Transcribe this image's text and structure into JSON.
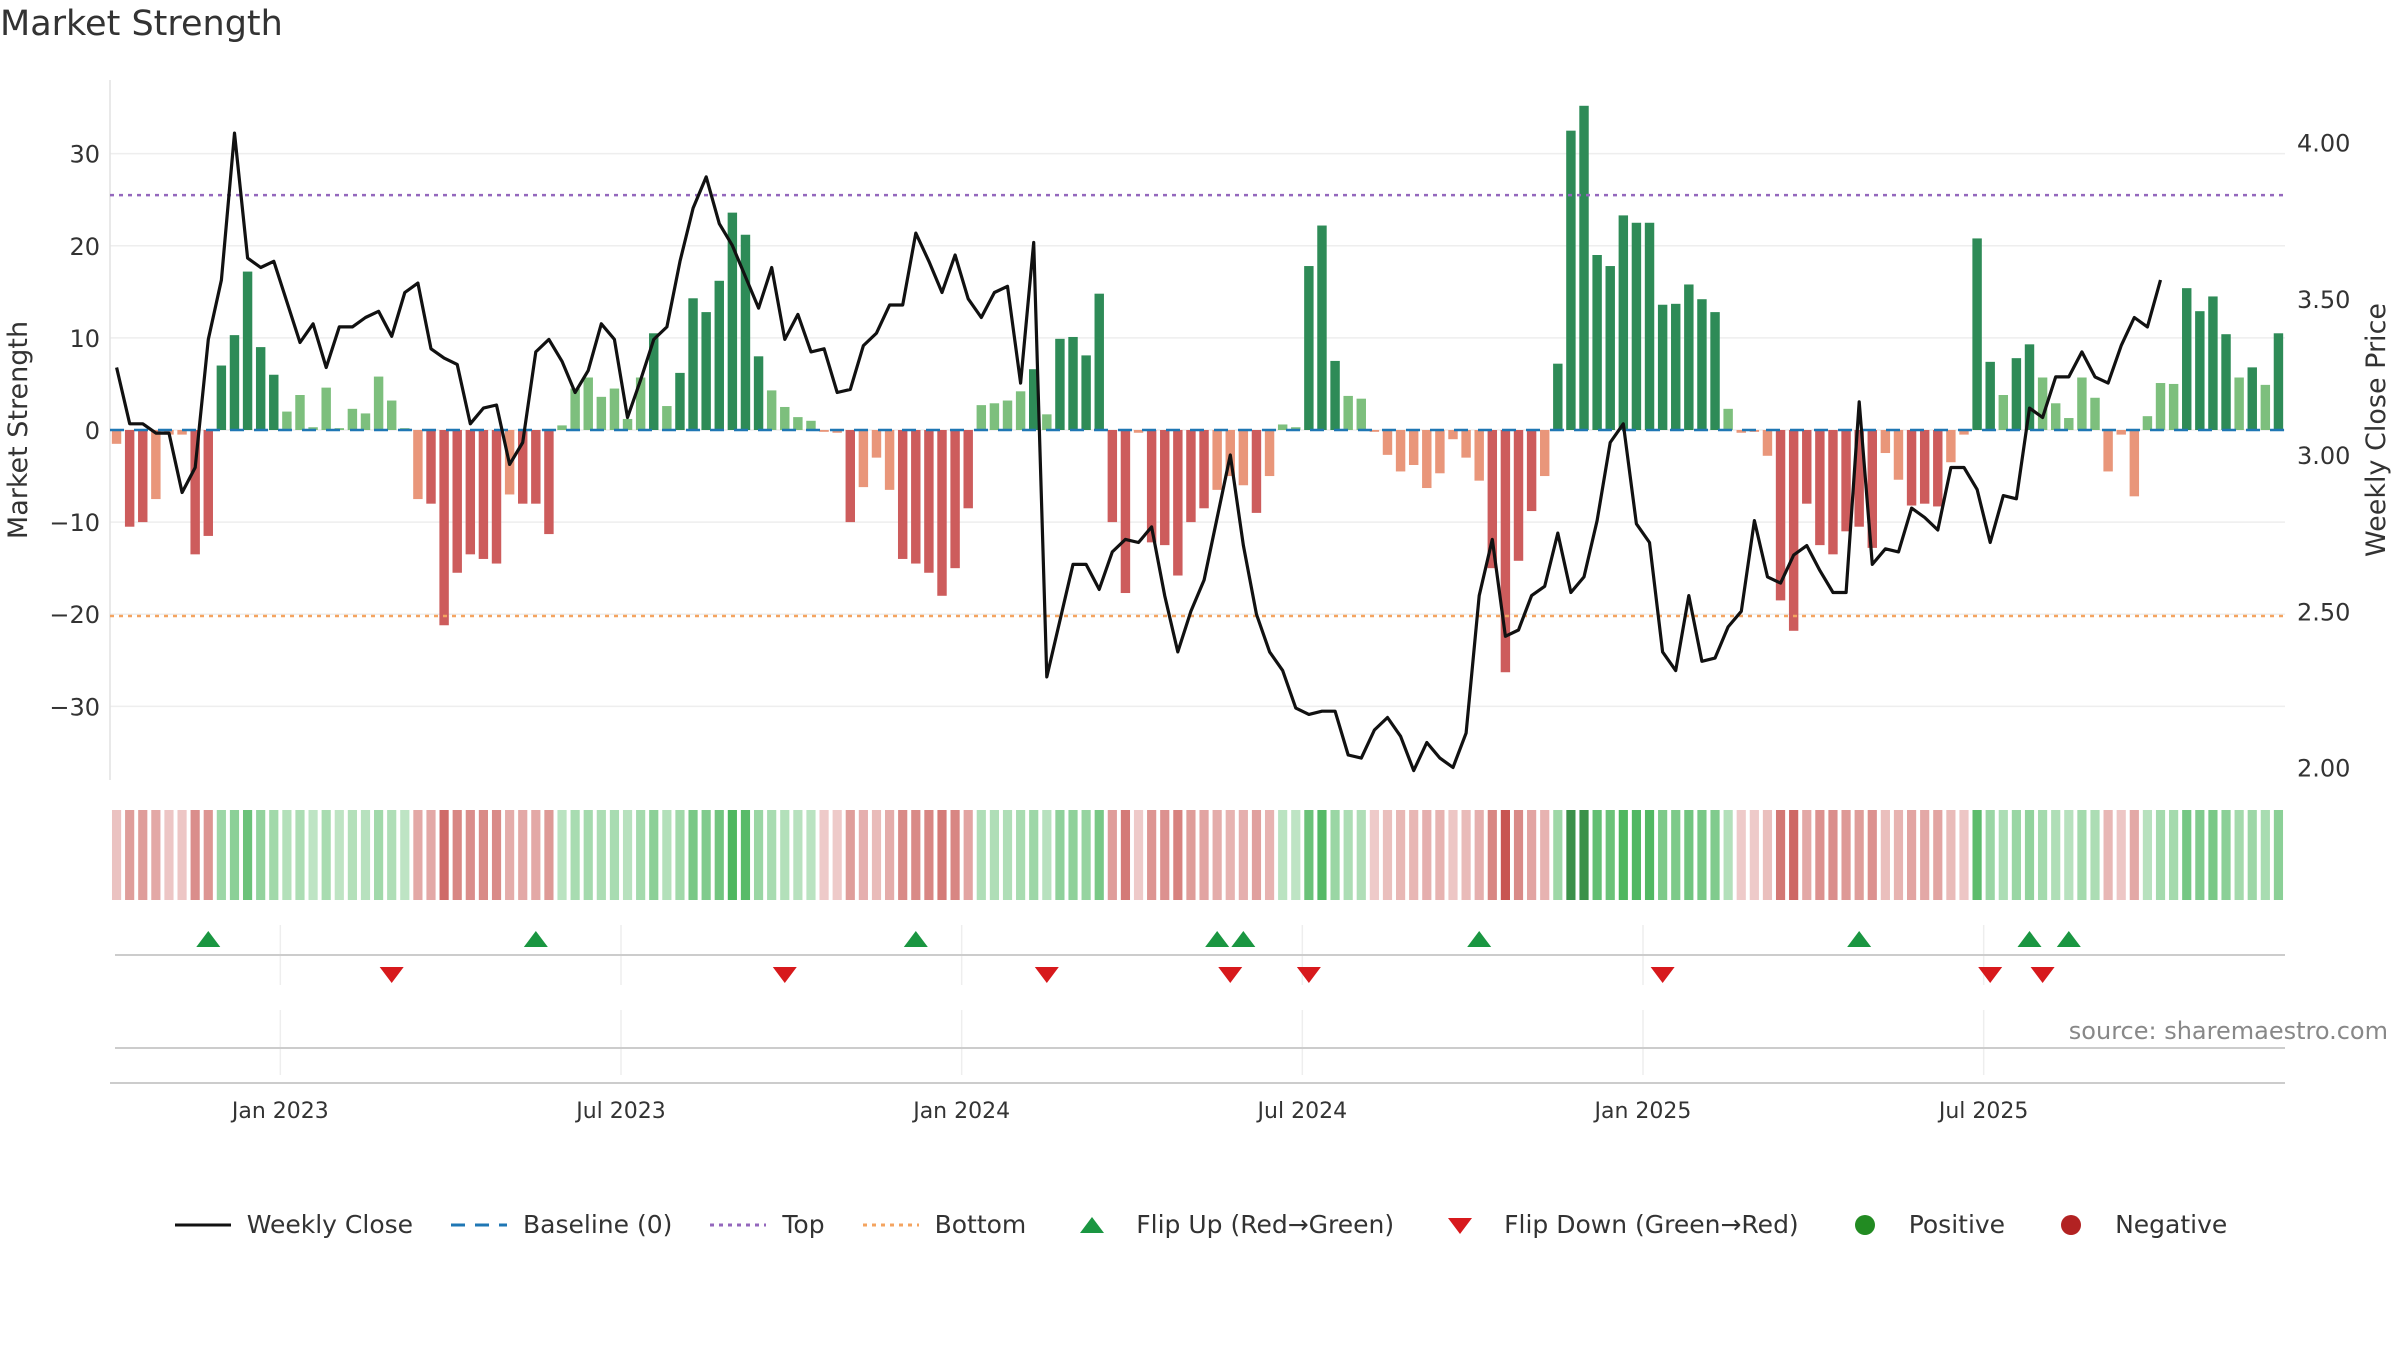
{
  "chart_title": "Market Strength",
  "source_note": "source: sharemaestro.com",
  "colors": {
    "strong_green": "#2e8b57",
    "light_green": "#7dbf7d",
    "strong_red": "#cd5c5c",
    "light_red": "#e9967a",
    "close_line": "#111111",
    "baseline": "#1f77b4",
    "top_line": "#9467bd",
    "bottom_line": "#f4a460",
    "flip_up": "#1a9641",
    "flip_down": "#d7191c",
    "positive": "#228b22",
    "negative": "#b22222"
  },
  "legend": [
    {
      "key": "close",
      "label": "Weekly Close"
    },
    {
      "key": "baseline",
      "label": "Baseline (0)"
    },
    {
      "key": "top",
      "label": "Top"
    },
    {
      "key": "bottom",
      "label": "Bottom"
    },
    {
      "key": "flip_up",
      "label": "Flip Up (Red→Green)"
    },
    {
      "key": "flip_down",
      "label": "Flip Down (Green→Red)"
    },
    {
      "key": "positive",
      "label": "Positive"
    },
    {
      "key": "negative",
      "label": "Negative"
    }
  ],
  "chart_data": {
    "type": "bar",
    "title": "Market Strength",
    "ylabel": "Market Strength",
    "y2label": "Weekly Close Price",
    "ylim": [
      -38,
      38
    ],
    "y2lim": [
      1.96,
      4.2
    ],
    "y_ticks": [
      30,
      20,
      10,
      0,
      -10,
      -20,
      -30
    ],
    "y_tick_labels": [
      "30",
      "20",
      "10",
      "0",
      "−10",
      "−20",
      "−30"
    ],
    "y2_ticks": [
      4.0,
      3.5,
      3.0,
      2.5,
      2.0
    ],
    "y2_tick_labels": [
      "4.00",
      "3.50",
      "3.00",
      "2.50",
      "2.00"
    ],
    "x_start": "2022-10-03",
    "x_tick_weeks": [
      13,
      39,
      65,
      91,
      117,
      143
    ],
    "x_tick_labels": [
      "Jan 2023",
      "Jul 2023",
      "Jan 2024",
      "Jul 2024",
      "Jan 2025",
      "Jul 2025"
    ],
    "top_level": 25.5,
    "bottom_level": -20.2,
    "baseline_level": 0,
    "strength_values": [
      -1.5,
      -10.5,
      -10,
      -7.5,
      -0.5,
      -0.5,
      -13.5,
      -11.5,
      7,
      10.3,
      17.2,
      9,
      6,
      2,
      3.8,
      0.3,
      4.6,
      0.2,
      2.3,
      1.8,
      5.8,
      3.2,
      0.2,
      -7.5,
      -8,
      -21.2,
      -15.5,
      -13.5,
      -14,
      -14.5,
      -7,
      -8,
      -8,
      -11.3,
      0.5,
      4.5,
      5.7,
      3.6,
      4.5,
      1.2,
      5.7,
      10.5,
      2.6,
      6.2,
      14.3,
      12.8,
      16.2,
      23.6,
      21.2,
      8,
      4.3,
      2.5,
      1.4,
      1,
      -0.2,
      -0.3,
      -10,
      -6.2,
      -3,
      -6.5,
      -14,
      -14.5,
      -15.5,
      -18,
      -15,
      -8.5,
      2.7,
      2.9,
      3.2,
      4.2,
      6.6,
      1.7,
      9.9,
      10.1,
      8.1,
      14.8,
      -10,
      -17.7,
      -0.3,
      -12.2,
      -12.5,
      -15.8,
      -10,
      -8.5,
      -6.5,
      -5,
      -6,
      -9,
      -5,
      0.6,
      0.3,
      17.8,
      22.2,
      7.5,
      3.7,
      3.4,
      -0.2,
      -2.7,
      -4.5,
      -3.8,
      -6.3,
      -4.7,
      -1,
      -3,
      -5.5,
      -15,
      -26.3,
      -14.2,
      -8.8,
      -5,
      7.2,
      32.5,
      35.2,
      19,
      17.8,
      23.3,
      22.5,
      22.5,
      13.6,
      13.7,
      15.8,
      14.2,
      12.8,
      2.3,
      -0.3,
      -0.2,
      -2.8,
      -18.5,
      -21.8,
      -8,
      -12.5,
      -13.5,
      -11,
      -10.5,
      -12.8,
      -2.5,
      -5.4,
      -8.2,
      -8,
      -8.3,
      -3.5,
      -0.5,
      20.8,
      7.4,
      3.8,
      7.8,
      9.3,
      5.7,
      2.9,
      1.3,
      5.7,
      3.5,
      -4.5,
      -0.5,
      -7.2,
      1.5,
      5.1,
      5,
      15.4,
      12.9,
      14.5,
      10.4,
      5.7,
      6.8,
      4.9,
      10.5
    ],
    "close_values": [
      3.28,
      3.1,
      3.1,
      3.07,
      3.07,
      2.88,
      2.96,
      3.37,
      3.56,
      4.03,
      3.63,
      3.6,
      3.62,
      3.49,
      3.36,
      3.42,
      3.28,
      3.41,
      3.41,
      3.44,
      3.46,
      3.38,
      3.52,
      3.55,
      3.34,
      3.31,
      3.29,
      3.1,
      3.15,
      3.16,
      2.97,
      3.04,
      3.33,
      3.37,
      3.3,
      3.2,
      3.27,
      3.42,
      3.37,
      3.12,
      3.24,
      3.37,
      3.41,
      3.62,
      3.79,
      3.89,
      3.74,
      3.67,
      3.57,
      3.47,
      3.6,
      3.37,
      3.45,
      3.33,
      3.34,
      3.2,
      3.21,
      3.35,
      3.39,
      3.48,
      3.48,
      3.71,
      3.62,
      3.52,
      3.64,
      3.5,
      3.44,
      3.52,
      3.54,
      3.23,
      3.68,
      2.29,
      2.47,
      2.65,
      2.65,
      2.57,
      2.69,
      2.73,
      2.72,
      2.77,
      2.55,
      2.37,
      2.5,
      2.6,
      2.8,
      3.0,
      2.71,
      2.49,
      2.37,
      2.31,
      2.19,
      2.17,
      2.18,
      2.18,
      2.04,
      2.03,
      2.12,
      2.16,
      2.1,
      1.99,
      2.08,
      2.03,
      2.0,
      2.11,
      2.55,
      2.73,
      2.42,
      2.44,
      2.55,
      2.58,
      2.75,
      2.56,
      2.61,
      2.79,
      3.04,
      3.1,
      2.78,
      2.72,
      2.37,
      2.31,
      2.55,
      2.34,
      2.35,
      2.45,
      2.5,
      2.79,
      2.61,
      2.59,
      2.68,
      2.71,
      2.63,
      2.56,
      2.56,
      3.17,
      2.65,
      2.7,
      2.69,
      2.83,
      2.8,
      2.76,
      2.96,
      2.96,
      2.89,
      2.72,
      2.87,
      2.86,
      3.15,
      3.12,
      3.25,
      3.25,
      3.33,
      3.25,
      3.23,
      3.35,
      3.44,
      3.41,
      3.56
    ],
    "flip_up_weeks": [
      7,
      32,
      61,
      84,
      86,
      104,
      133,
      146,
      149
    ],
    "flip_down_weeks": [
      21,
      51,
      71,
      85,
      91,
      118,
      143,
      147
    ],
    "series": [
      {
        "name": "Market Strength",
        "axis": "left",
        "kind": "bar"
      },
      {
        "name": "Weekly Close",
        "axis": "right",
        "kind": "line"
      }
    ]
  }
}
